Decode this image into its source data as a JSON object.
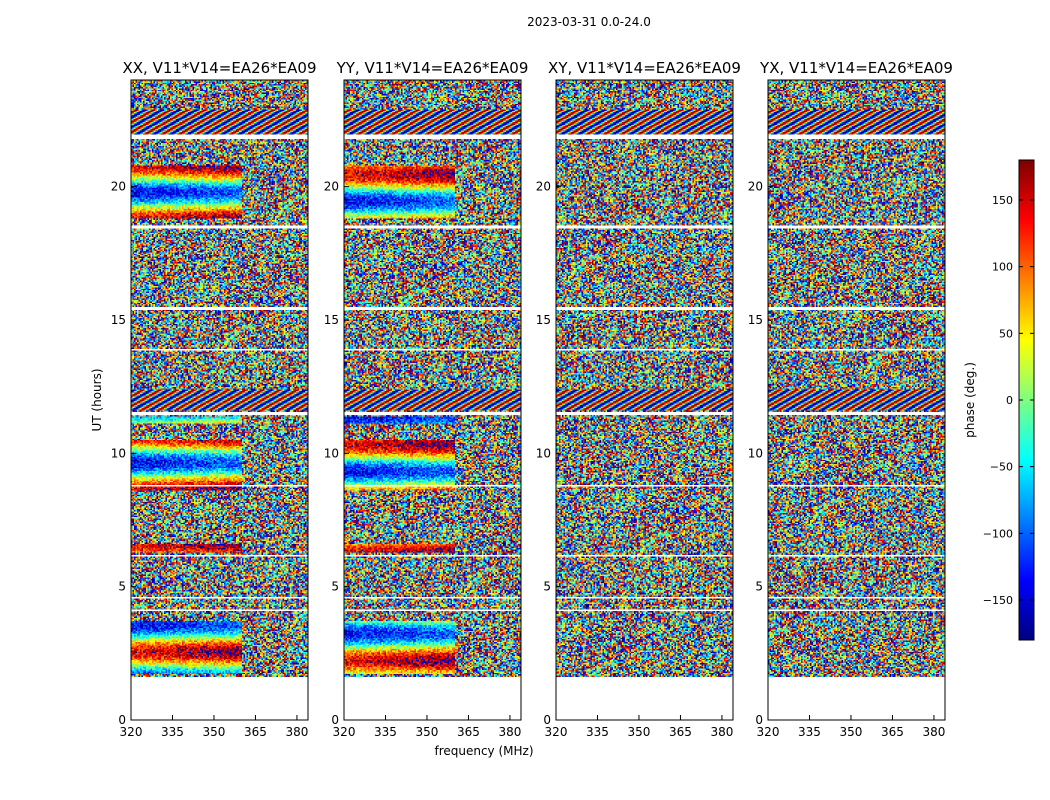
{
  "chart_data": {
    "type": "heatmap",
    "suptitle": "2023-03-31 0.0-24.0",
    "xlabel": "frequency (MHz)",
    "ylabel": "UT (hours)",
    "colorbar_label": "phase (deg.)",
    "xlim": [
      320,
      384
    ],
    "ylim": [
      0,
      24
    ],
    "clim": [
      -180,
      180
    ],
    "x_ticks": [
      320,
      335,
      350,
      365,
      380
    ],
    "y_ticks": [
      0,
      5,
      10,
      15,
      20
    ],
    "colorbar_ticks": [
      150,
      100,
      50,
      0,
      -50,
      -100,
      -150
    ],
    "colormap": [
      "#00007f",
      "#0000ff",
      "#007fff",
      "#00ffff",
      "#7fff7f",
      "#ffff00",
      "#ff7f00",
      "#ff0000",
      "#7f0000"
    ],
    "data_start_hour": 1.6,
    "data_end_hour": 24.0,
    "flagged_hour_ranges": [
      [
        0.0,
        1.6
      ],
      [
        4.05,
        4.15
      ],
      [
        4.55,
        4.6
      ],
      [
        6.1,
        6.15
      ],
      [
        8.75,
        8.8
      ],
      [
        11.45,
        11.55
      ],
      [
        13.85,
        13.9
      ],
      [
        15.4,
        15.5
      ],
      [
        18.45,
        18.55
      ],
      [
        21.8,
        21.95
      ]
    ],
    "panels": [
      {
        "title": "XX, V11*V14=EA26*EA09",
        "coherent_hour_ranges": [
          [
            1.7,
            3.7
          ],
          [
            6.3,
            6.6
          ],
          [
            8.6,
            10.5
          ],
          [
            11.1,
            11.4
          ],
          [
            18.8,
            20.8
          ]
        ]
      },
      {
        "title": "YY, V11*V14=EA26*EA09",
        "coherent_hour_ranges": [
          [
            1.7,
            3.7
          ],
          [
            6.3,
            6.6
          ],
          [
            8.6,
            10.5
          ],
          [
            11.1,
            11.4
          ],
          [
            18.8,
            20.8
          ]
        ]
      },
      {
        "title": "XY, V11*V14=EA26*EA09",
        "coherent_hour_ranges": []
      },
      {
        "title": "YX, V11*V14=EA26*EA09",
        "coherent_hour_ranges": []
      }
    ]
  }
}
